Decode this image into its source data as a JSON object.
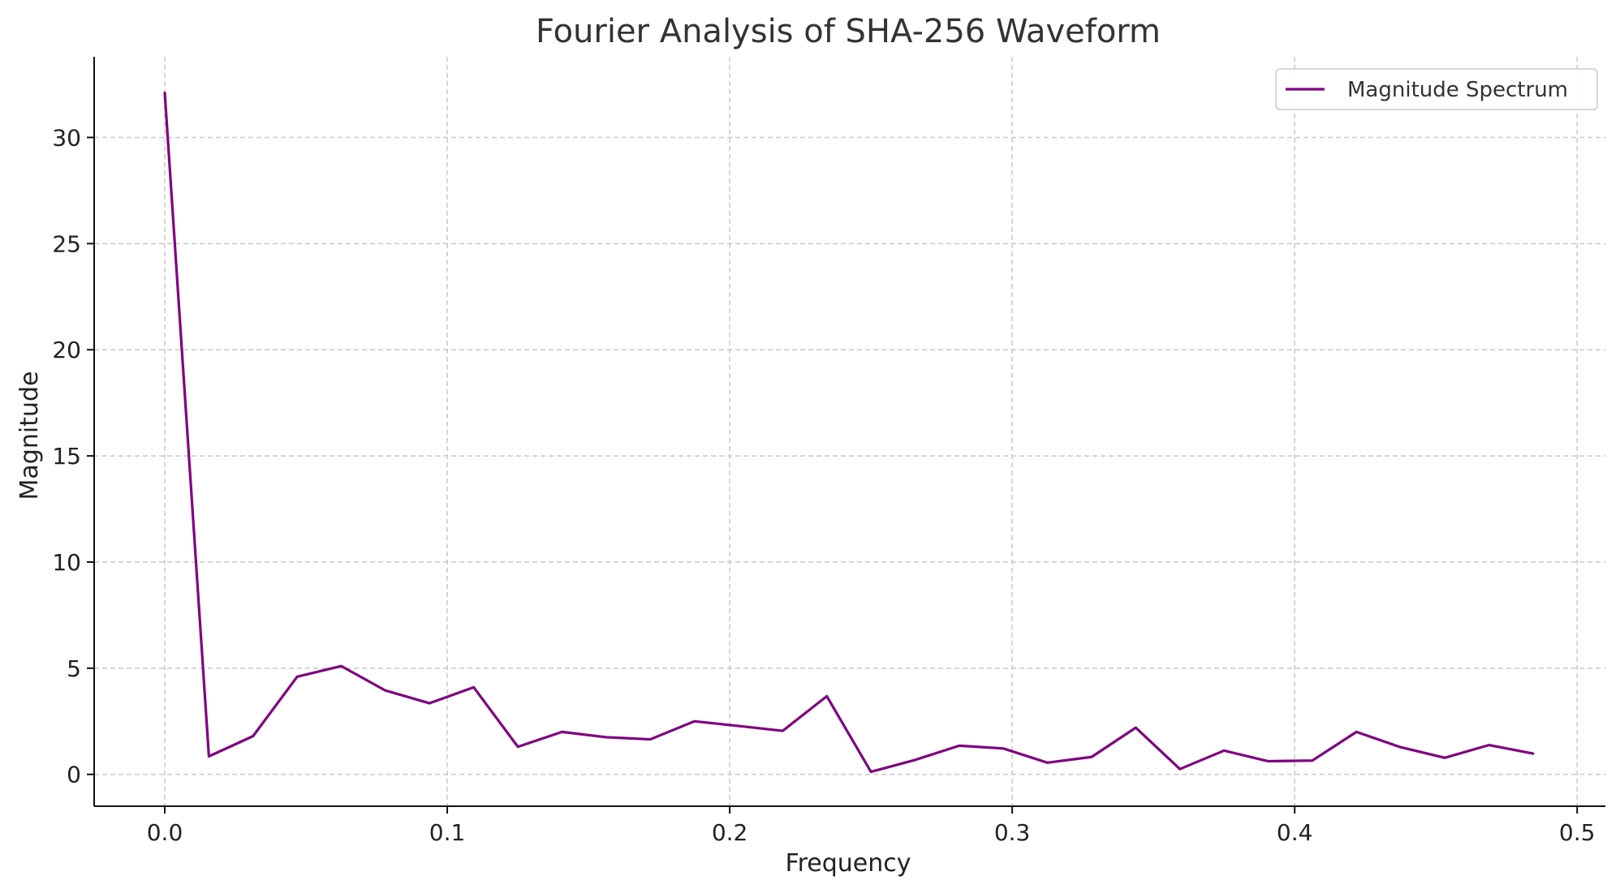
{
  "chart_data": {
    "type": "line",
    "title": "Fourier Analysis of SHA-256 Waveform",
    "xlabel": "Frequency",
    "ylabel": "Magnitude",
    "xlim": [
      -0.025,
      0.51
    ],
    "ylim": [
      -1.5,
      33.8
    ],
    "xticks": [
      0.0,
      0.1,
      0.2,
      0.3,
      0.4,
      0.5
    ],
    "xtick_labels": [
      "0.0",
      "0.1",
      "0.2",
      "0.3",
      "0.4",
      "0.5"
    ],
    "yticks": [
      0,
      5,
      10,
      15,
      20,
      25,
      30
    ],
    "ytick_labels": [
      "0",
      "5",
      "10",
      "15",
      "20",
      "25",
      "30"
    ],
    "grid": true,
    "legend_position": "top-right",
    "series": [
      {
        "name": "Magnitude Spectrum",
        "color": "#800080",
        "x": [
          0.0,
          0.015625,
          0.03125,
          0.046875,
          0.0625,
          0.078125,
          0.09375,
          0.109375,
          0.125,
          0.140625,
          0.15625,
          0.171875,
          0.1875,
          0.203125,
          0.21875,
          0.234375,
          0.25,
          0.265625,
          0.28125,
          0.296875,
          0.3125,
          0.328125,
          0.34375,
          0.359375,
          0.375,
          0.390625,
          0.40625,
          0.421875,
          0.4375,
          0.453125,
          0.46875,
          0.484375
        ],
        "values": [
          32.1,
          0.85,
          1.8,
          4.6,
          5.1,
          3.95,
          3.35,
          4.1,
          1.3,
          2.0,
          1.75,
          1.65,
          2.5,
          2.28,
          2.05,
          3.68,
          0.12,
          0.68,
          1.35,
          1.22,
          0.55,
          0.82,
          2.2,
          0.25,
          1.12,
          0.62,
          0.65,
          2.0,
          1.28,
          0.78,
          1.38,
          0.98
        ]
      }
    ]
  }
}
